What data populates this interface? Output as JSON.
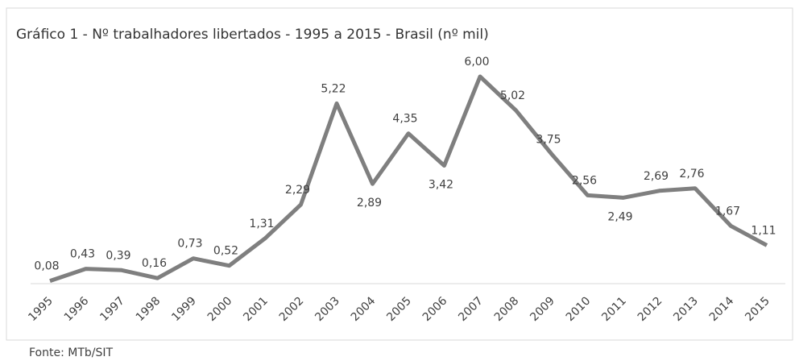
{
  "chart_data": {
    "type": "line",
    "title": "Gráfico 1 - Nº trabalhadores libertados - 1995 a 2015 - Brasil (nº mil)",
    "categories": [
      "1995",
      "1996",
      "1997",
      "1998",
      "1999",
      "2000",
      "2001",
      "2002",
      "2003",
      "2004",
      "2005",
      "2006",
      "2007",
      "2008",
      "2009",
      "2010",
      "2011",
      "2012",
      "2013",
      "2014",
      "2015"
    ],
    "values": [
      0.08,
      0.43,
      0.39,
      0.16,
      0.73,
      0.52,
      1.31,
      2.29,
      5.22,
      2.89,
      4.35,
      3.42,
      6.0,
      5.02,
      3.75,
      2.56,
      2.49,
      2.69,
      2.76,
      1.67,
      1.11
    ],
    "value_labels": [
      "0,08",
      "0,43",
      "0,39",
      "0,16",
      "0,73",
      "0,52",
      "1,31",
      "2,29",
      "5,22",
      "2,89",
      "4,35",
      "3,42",
      "6,00",
      "5,02",
      "3,75",
      "2,56",
      "2,49",
      "2,69",
      "2,76",
      "1,67",
      "1,11"
    ],
    "color": "#7f7f7f",
    "ylim": [
      0,
      6
    ],
    "source": "Fonte: MTb/SIT"
  }
}
